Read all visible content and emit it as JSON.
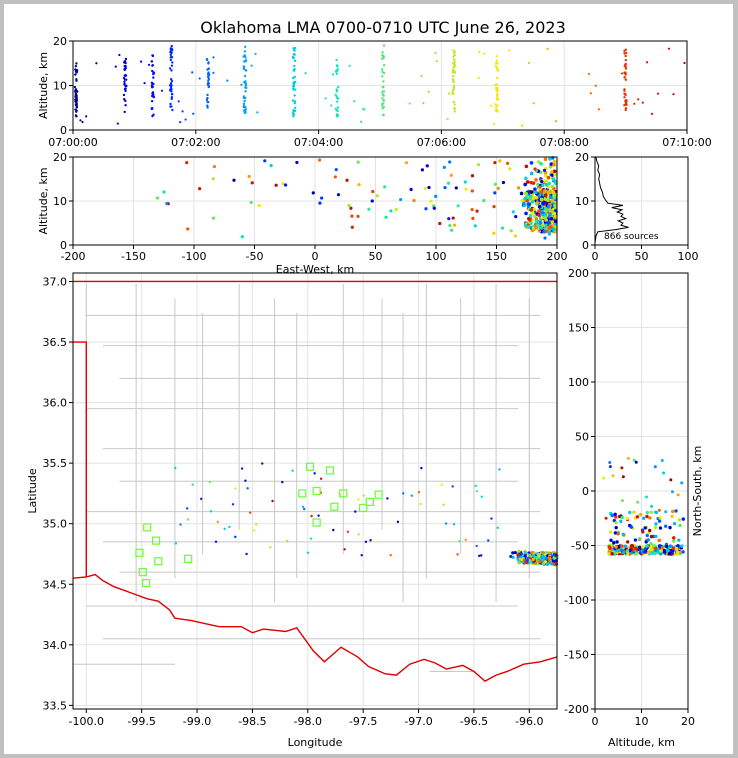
{
  "title": "Oklahoma LMA 0700-0710 UTC June 26, 2023",
  "chart_data": [
    {
      "id": "time_height",
      "type": "scatter",
      "xlabel": "",
      "ylabel": "Altitude, km",
      "x_ticks": [
        "07:00:00",
        "07:02:00",
        "07:04:00",
        "07:06:00",
        "07:08:00",
        "07:10:00"
      ],
      "xlim_minutes": [
        0,
        10
      ],
      "ylim": [
        0,
        20
      ],
      "y_ticks": [
        0,
        10,
        20
      ],
      "grid": true,
      "color_encoding": "time",
      "point_clusters": [
        {
          "t": 0.05,
          "alt_min": 3,
          "alt_max": 15,
          "n": 40
        },
        {
          "t": 0.85,
          "alt_min": 4,
          "alt_max": 16,
          "n": 30
        },
        {
          "t": 1.3,
          "alt_min": 3,
          "alt_max": 17,
          "n": 30
        },
        {
          "t": 1.6,
          "alt_min": 4,
          "alt_max": 19,
          "n": 35
        },
        {
          "t": 2.2,
          "alt_min": 5,
          "alt_max": 16,
          "n": 25
        },
        {
          "t": 2.8,
          "alt_min": 3,
          "alt_max": 19,
          "n": 35
        },
        {
          "t": 3.6,
          "alt_min": 3,
          "alt_max": 19,
          "n": 40
        },
        {
          "t": 4.3,
          "alt_min": 3,
          "alt_max": 16,
          "n": 25
        },
        {
          "t": 5.05,
          "alt_min": 3,
          "alt_max": 19,
          "n": 30
        },
        {
          "t": 6.2,
          "alt_min": 4,
          "alt_max": 18,
          "n": 35
        },
        {
          "t": 6.9,
          "alt_min": 4,
          "alt_max": 17,
          "n": 30
        },
        {
          "t": 9.0,
          "alt_min": 4,
          "alt_max": 19,
          "n": 35
        }
      ]
    },
    {
      "id": "ew_altitude",
      "type": "scatter",
      "xlabel": "East-West, km",
      "ylabel": "Altitude, km",
      "xlim": [
        -200,
        200
      ],
      "x_ticks": [
        -200,
        -150,
        -100,
        -50,
        0,
        50,
        100,
        150,
        200
      ],
      "ylim": [
        0,
        20
      ],
      "y_ticks": [
        0,
        10,
        20
      ],
      "grid": true,
      "dense_region": {
        "x_min": 170,
        "x_max": 200,
        "alt_min": 3,
        "alt_max": 20
      }
    },
    {
      "id": "alt_histogram",
      "type": "line",
      "xlim": [
        0,
        100
      ],
      "x_ticks": [
        0,
        50,
        100
      ],
      "ylim": [
        0,
        20
      ],
      "y_ticks": [
        0,
        10,
        20
      ],
      "annotation": "866 sources",
      "profile": [
        {
          "alt": 0.5,
          "count": 0
        },
        {
          "alt": 2,
          "count": 1
        },
        {
          "alt": 3,
          "count": 3
        },
        {
          "alt": 3.5,
          "count": 22
        },
        {
          "alt": 4,
          "count": 36
        },
        {
          "alt": 4.5,
          "count": 28
        },
        {
          "alt": 5,
          "count": 30
        },
        {
          "alt": 5.5,
          "count": 25
        },
        {
          "alt": 6,
          "count": 33
        },
        {
          "alt": 6.5,
          "count": 28
        },
        {
          "alt": 7,
          "count": 30
        },
        {
          "alt": 7.5,
          "count": 24
        },
        {
          "alt": 8,
          "count": 29
        },
        {
          "alt": 8.5,
          "count": 18
        },
        {
          "alt": 9,
          "count": 30
        },
        {
          "alt": 9.5,
          "count": 14
        },
        {
          "alt": 10,
          "count": 12
        },
        {
          "alt": 11,
          "count": 9
        },
        {
          "alt": 12,
          "count": 8
        },
        {
          "alt": 13,
          "count": 6
        },
        {
          "alt": 14,
          "count": 5
        },
        {
          "alt": 15,
          "count": 4
        },
        {
          "alt": 16,
          "count": 5
        },
        {
          "alt": 17,
          "count": 3
        },
        {
          "alt": 18,
          "count": 4
        },
        {
          "alt": 19,
          "count": 2
        },
        {
          "alt": 20,
          "count": 1
        }
      ]
    },
    {
      "id": "plan_view_map",
      "type": "scatter",
      "xlabel": "Longitude",
      "ylabel": "Latitude",
      "xlim": [
        -100.12,
        -95.75
      ],
      "x_ticks": [
        -100.0,
        -99.5,
        -99.0,
        -98.5,
        -98.0,
        -97.5,
        -97.0,
        -96.5,
        -96.0
      ],
      "ylim": [
        33.47,
        37.07
      ],
      "y_ticks": [
        33.5,
        34.0,
        34.5,
        35.0,
        35.5,
        36.0,
        36.5,
        37.0
      ],
      "grid": true,
      "stations": [
        [
          -99.45,
          34.97
        ],
        [
          -99.37,
          34.86
        ],
        [
          -99.52,
          34.76
        ],
        [
          -99.49,
          34.6
        ],
        [
          -99.46,
          34.51
        ],
        [
          -99.35,
          34.69
        ],
        [
          -99.08,
          34.71
        ],
        [
          -98.05,
          35.25
        ],
        [
          -97.98,
          35.47
        ],
        [
          -97.92,
          35.27
        ],
        [
          -97.92,
          35.01
        ],
        [
          -97.8,
          35.44
        ],
        [
          -97.76,
          35.14
        ],
        [
          -97.68,
          35.25
        ],
        [
          -97.5,
          35.13
        ],
        [
          -97.44,
          35.18
        ],
        [
          -97.36,
          35.24
        ]
      ],
      "source_region": {
        "lon_min": -96.2,
        "lon_max": -95.75,
        "lat_min": 34.68,
        "lat_max": 34.9
      }
    },
    {
      "id": "ns_altitude",
      "type": "scatter",
      "xlabel": "Altitude, km",
      "ylabel": "North-South, km",
      "xlim": [
        0,
        20
      ],
      "x_ticks": [
        0,
        10,
        20
      ],
      "ylim": [
        -200,
        200
      ],
      "y_ticks": [
        -200,
        -150,
        -100,
        -50,
        0,
        50,
        100,
        150,
        200
      ],
      "grid": true,
      "dense_region": {
        "alt_min": 3,
        "alt_max": 20,
        "ns_min": -62,
        "ns_max": -40
      }
    }
  ]
}
